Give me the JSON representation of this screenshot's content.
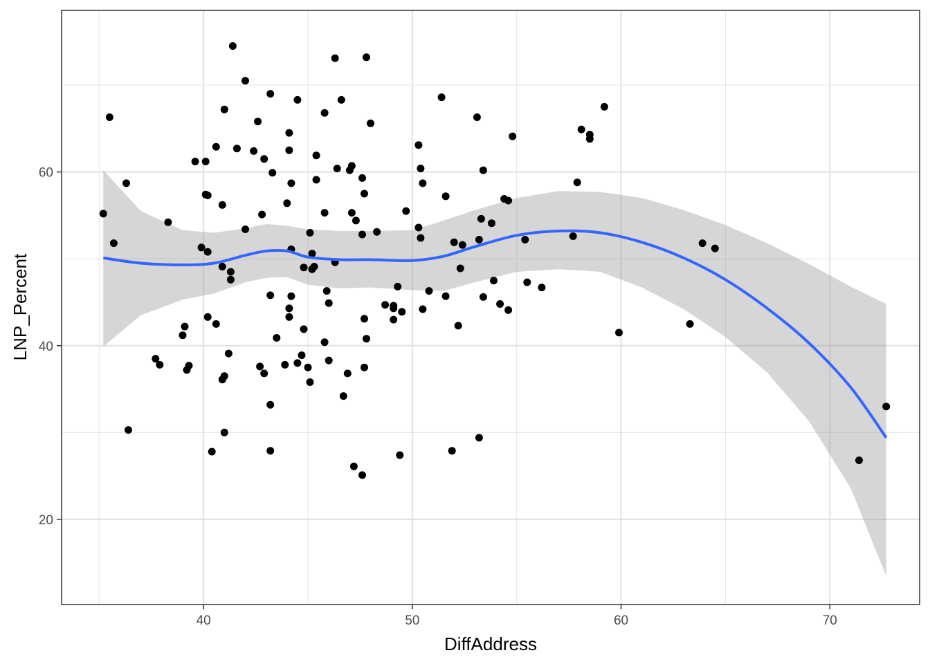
{
  "chart_data": {
    "type": "scatter",
    "title": "",
    "xlabel": "DiffAddress",
    "ylabel": "LNP_Percent",
    "xlim": [
      33.2,
      74.3
    ],
    "ylim": [
      10.2,
      78.6
    ],
    "x_ticks": [
      40,
      50,
      60,
      70
    ],
    "x_tick_labels": [
      "40",
      "50",
      "60",
      "70"
    ],
    "y_ticks": [
      20,
      40,
      60
    ],
    "y_tick_labels": [
      "20",
      "40",
      "60"
    ],
    "x_minor_breaks": [
      35,
      45,
      55,
      65
    ],
    "y_minor_breaks": [
      30,
      50,
      70
    ],
    "grid": true,
    "colors": {
      "points": "#000000",
      "smooth_line": "#3366FF",
      "ribbon": "#999999",
      "grid": "#e5e5e5",
      "panel_border": "#333333",
      "tick_text": "#4d4d4d"
    },
    "points": [
      [
        41.4,
        74.5
      ],
      [
        46.3,
        73.1
      ],
      [
        47.8,
        73.2
      ],
      [
        42.0,
        70.5
      ],
      [
        43.2,
        69.0
      ],
      [
        44.5,
        68.3
      ],
      [
        46.6,
        68.3
      ],
      [
        51.4,
        68.6
      ],
      [
        35.5,
        66.3
      ],
      [
        41.0,
        67.2
      ],
      [
        45.8,
        66.8
      ],
      [
        53.1,
        66.3
      ],
      [
        59.2,
        67.5
      ],
      [
        42.6,
        65.8
      ],
      [
        48.0,
        65.6
      ],
      [
        58.1,
        64.9
      ],
      [
        58.5,
        64.3
      ],
      [
        58.5,
        63.8
      ],
      [
        54.8,
        64.1
      ],
      [
        44.1,
        64.5
      ],
      [
        40.6,
        62.9
      ],
      [
        41.6,
        62.7
      ],
      [
        42.4,
        62.4
      ],
      [
        44.1,
        62.5
      ],
      [
        45.4,
        61.9
      ],
      [
        50.3,
        63.1
      ],
      [
        42.9,
        61.5
      ],
      [
        39.6,
        61.2
      ],
      [
        40.1,
        61.2
      ],
      [
        46.4,
        60.4
      ],
      [
        47.0,
        60.2
      ],
      [
        47.1,
        60.7
      ],
      [
        43.3,
        59.9
      ],
      [
        50.4,
        60.4
      ],
      [
        53.4,
        60.2
      ],
      [
        36.3,
        58.7
      ],
      [
        44.2,
        58.7
      ],
      [
        45.4,
        59.1
      ],
      [
        47.6,
        59.3
      ],
      [
        50.5,
        58.7
      ],
      [
        57.9,
        58.8
      ],
      [
        40.1,
        57.4
      ],
      [
        40.2,
        57.3
      ],
      [
        47.7,
        57.5
      ],
      [
        51.6,
        57.2
      ],
      [
        54.4,
        56.9
      ],
      [
        54.6,
        56.7
      ],
      [
        40.9,
        56.2
      ],
      [
        44.0,
        56.4
      ],
      [
        35.2,
        55.2
      ],
      [
        42.8,
        55.1
      ],
      [
        45.8,
        55.3
      ],
      [
        47.1,
        55.3
      ],
      [
        49.7,
        55.5
      ],
      [
        47.3,
        54.4
      ],
      [
        53.3,
        54.6
      ],
      [
        53.8,
        54.1
      ],
      [
        38.3,
        54.2
      ],
      [
        42.0,
        53.4
      ],
      [
        45.1,
        53.0
      ],
      [
        48.3,
        53.1
      ],
      [
        47.6,
        52.8
      ],
      [
        50.3,
        53.6
      ],
      [
        50.4,
        52.4
      ],
      [
        52.0,
        51.9
      ],
      [
        52.4,
        51.6
      ],
      [
        53.2,
        52.2
      ],
      [
        55.4,
        52.2
      ],
      [
        57.7,
        52.6
      ],
      [
        63.9,
        51.8
      ],
      [
        64.5,
        51.2
      ],
      [
        35.7,
        51.8
      ],
      [
        39.9,
        51.3
      ],
      [
        40.2,
        50.8
      ],
      [
        44.2,
        51.1
      ],
      [
        45.2,
        50.6
      ],
      [
        40.9,
        49.1
      ],
      [
        44.8,
        49.0
      ],
      [
        45.2,
        48.8
      ],
      [
        45.3,
        49.1
      ],
      [
        46.3,
        49.6
      ],
      [
        41.3,
        48.5
      ],
      [
        41.3,
        47.6
      ],
      [
        52.3,
        48.9
      ],
      [
        53.9,
        47.5
      ],
      [
        55.5,
        47.3
      ],
      [
        56.2,
        46.7
      ],
      [
        49.3,
        46.8
      ],
      [
        45.9,
        46.3
      ],
      [
        50.8,
        46.3
      ],
      [
        44.2,
        45.7
      ],
      [
        43.2,
        45.8
      ],
      [
        51.6,
        45.7
      ],
      [
        53.4,
        45.6
      ],
      [
        46.0,
        44.9
      ],
      [
        48.7,
        44.7
      ],
      [
        49.1,
        44.6
      ],
      [
        49.1,
        44.3
      ],
      [
        54.2,
        44.8
      ],
      [
        50.5,
        44.2
      ],
      [
        54.6,
        44.1
      ],
      [
        44.1,
        44.3
      ],
      [
        49.5,
        43.9
      ],
      [
        40.2,
        43.3
      ],
      [
        44.1,
        43.3
      ],
      [
        47.7,
        43.1
      ],
      [
        49.1,
        43.0
      ],
      [
        40.6,
        42.5
      ],
      [
        52.2,
        42.3
      ],
      [
        63.3,
        42.5
      ],
      [
        39.1,
        42.2
      ],
      [
        44.8,
        41.9
      ],
      [
        59.9,
        41.5
      ],
      [
        39.0,
        41.2
      ],
      [
        43.5,
        40.9
      ],
      [
        47.8,
        40.8
      ],
      [
        45.8,
        40.4
      ],
      [
        41.2,
        39.1
      ],
      [
        44.7,
        38.9
      ],
      [
        37.7,
        38.5
      ],
      [
        46.0,
        38.3
      ],
      [
        37.9,
        37.8
      ],
      [
        44.5,
        38.0
      ],
      [
        43.9,
        37.8
      ],
      [
        39.3,
        37.7
      ],
      [
        42.7,
        37.6
      ],
      [
        45.0,
        37.5
      ],
      [
        47.7,
        37.5
      ],
      [
        39.2,
        37.2
      ],
      [
        42.9,
        36.8
      ],
      [
        46.9,
        36.8
      ],
      [
        41.0,
        36.5
      ],
      [
        40.9,
        36.1
      ],
      [
        45.1,
        35.8
      ],
      [
        46.7,
        34.2
      ],
      [
        43.2,
        33.2
      ],
      [
        72.7,
        33.0
      ],
      [
        36.4,
        30.3
      ],
      [
        41.0,
        30.0
      ],
      [
        53.2,
        29.4
      ],
      [
        40.4,
        27.8
      ],
      [
        43.2,
        27.9
      ],
      [
        51.9,
        27.9
      ],
      [
        49.4,
        27.4
      ],
      [
        71.4,
        26.8
      ],
      [
        47.2,
        26.1
      ],
      [
        47.6,
        25.1
      ]
    ],
    "smooth": {
      "method": "loess",
      "series": [
        {
          "name": "fit",
          "x": [
            35.2,
            37.0,
            39.0,
            40.5,
            42.0,
            43.0,
            44.0,
            45.0,
            46.5,
            48.0,
            50.0,
            51.5,
            53.0,
            55.0,
            57.0,
            59.0,
            61.0,
            63.0,
            65.0,
            67.0,
            69.0,
            71.0,
            72.7
          ],
          "y": [
            50.1,
            49.5,
            49.3,
            49.5,
            50.4,
            50.9,
            50.9,
            50.2,
            49.9,
            49.9,
            49.8,
            50.3,
            51.4,
            52.7,
            53.2,
            53.0,
            51.9,
            50.1,
            47.6,
            44.3,
            40.3,
            35.2,
            29.4
          ]
        },
        {
          "name": "ci_upper",
          "x": [
            35.2,
            37.0,
            39.0,
            40.5,
            42.0,
            43.0,
            44.0,
            45.0,
            46.5,
            48.0,
            50.0,
            51.5,
            53.0,
            55.0,
            57.0,
            59.0,
            61.0,
            63.0,
            65.0,
            67.0,
            69.0,
            71.0,
            72.7
          ],
          "y": [
            60.2,
            55.5,
            53.3,
            53.0,
            53.5,
            54.0,
            53.8,
            53.4,
            53.2,
            53.2,
            53.3,
            54.4,
            55.6,
            57.0,
            57.8,
            57.7,
            57.0,
            55.6,
            53.9,
            51.8,
            49.4,
            46.8,
            44.8
          ]
        },
        {
          "name": "ci_lower",
          "x": [
            35.2,
            37.0,
            39.0,
            40.5,
            42.0,
            43.0,
            44.0,
            45.0,
            46.5,
            48.0,
            50.0,
            51.5,
            53.0,
            55.0,
            57.0,
            59.0,
            61.0,
            63.0,
            65.0,
            67.0,
            69.0,
            71.0,
            72.7
          ],
          "y": [
            39.9,
            43.5,
            45.3,
            46.0,
            47.3,
            47.8,
            47.9,
            47.0,
            46.6,
            46.7,
            46.4,
            46.3,
            47.3,
            48.5,
            48.8,
            48.5,
            46.7,
            44.2,
            41.0,
            36.9,
            31.3,
            23.6,
            13.5
          ]
        }
      ]
    }
  }
}
